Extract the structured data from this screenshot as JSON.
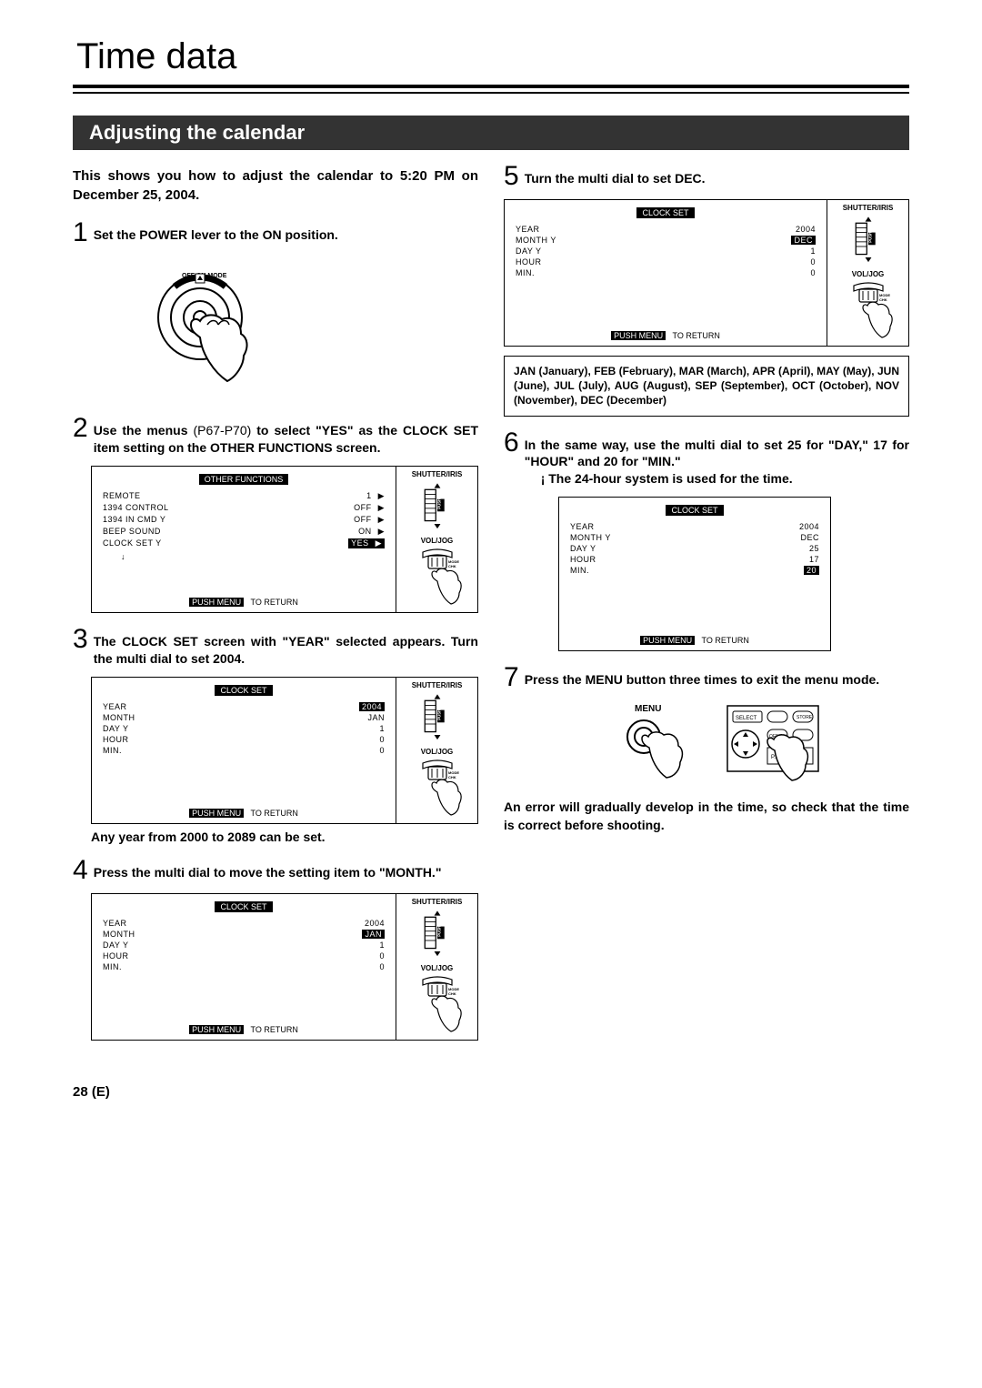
{
  "page_title": "Time data",
  "section_header": "Adjusting the calendar",
  "intro": "This shows you how to adjust the calendar to 5:20 PM on December 25, 2004.",
  "steps": {
    "s1": {
      "num": "1",
      "text": "Set the POWER lever to the ON position."
    },
    "s2": {
      "num": "2",
      "text_a": "Use the menus ",
      "text_b": "(P67-P70)",
      "text_c": " to select \"YES\" as the CLOCK SET item setting on the OTHER FUNCTIONS screen."
    },
    "s3": {
      "num": "3",
      "text": "The CLOCK SET screen with \"YEAR\" selected appears. Turn the multi dial to set 2004."
    },
    "s3_note": "Any year from 2000 to 2089 can be set.",
    "s4": {
      "num": "4",
      "text": "Press the multi dial to move the setting item to \"MONTH.\""
    },
    "s5": {
      "num": "5",
      "text": "Turn the multi dial to set DEC."
    },
    "s6": {
      "num": "6",
      "text": "In the same way, use the multi dial to set 25 for \"DAY,\" 17 for \"HOUR\" and 20 for \"MIN.\""
    },
    "s6_note": "The 24-hour system is used for the time.",
    "s7": {
      "num": "7",
      "text": "Press the MENU button three times to exit the menu mode."
    }
  },
  "abbrev": "JAN (January), FEB (February), MAR (March), APR (April), MAY (May), JUN (June), JUL (July), AUG (August), SEP (September), OCT (October), NOV (November), DEC (December)",
  "final_note": "An error will gradually develop in the time, so check that the time is correct before shooting.",
  "page_footer": "28 (E)",
  "dial_labels": {
    "top": "SHUTTER/IRIS",
    "push": "PUSH",
    "bottom": "VOL/JOG"
  },
  "menu_label": "MENU",
  "screens": {
    "other_functions": {
      "title": "OTHER FUNCTIONS",
      "rows": [
        {
          "l": "REMOTE",
          "v": "1",
          "arrow": true
        },
        {
          "l": "1394 CONTROL",
          "v": "OFF",
          "arrow": true
        },
        {
          "l": "1394 IN CMD",
          "v": "OFF",
          "arrow": true,
          "y": "Y"
        },
        {
          "l": "BEEP SOUND",
          "v": "ON",
          "arrow": true
        },
        {
          "l": "CLOCK SET",
          "v": "YES",
          "arrow": true,
          "sel": true,
          "y": "Y"
        },
        {
          "l": "",
          "v": "",
          "arrow": false
        }
      ],
      "footer": [
        "PUSH MENU",
        "TO RETURN"
      ]
    },
    "clock_year": {
      "title": "CLOCK SET",
      "rows": [
        {
          "l": "YEAR",
          "v": "2004",
          "sel": true
        },
        {
          "l": "MONTH",
          "v": "JAN"
        },
        {
          "l": "DAY",
          "v": "1",
          "y": "Y"
        },
        {
          "l": "HOUR",
          "v": "0"
        },
        {
          "l": "MIN.",
          "v": "0"
        }
      ],
      "footer": [
        "PUSH MENU",
        "TO RETURN"
      ]
    },
    "clock_month": {
      "title": "CLOCK SET",
      "rows": [
        {
          "l": "YEAR",
          "v": "2004"
        },
        {
          "l": "MONTH",
          "v": "JAN",
          "sel": true
        },
        {
          "l": "DAY",
          "v": "1",
          "y": "Y"
        },
        {
          "l": "HOUR",
          "v": "0"
        },
        {
          "l": "MIN.",
          "v": "0"
        }
      ],
      "footer": [
        "PUSH MENU",
        "TO RETURN"
      ]
    },
    "clock_dec": {
      "title": "CLOCK SET",
      "rows": [
        {
          "l": "YEAR",
          "v": "2004"
        },
        {
          "l": "MONTH",
          "v": "DEC",
          "sel": true,
          "y": "Y"
        },
        {
          "l": "DAY",
          "v": "1",
          "y2": "Y"
        },
        {
          "l": "HOUR",
          "v": "0"
        },
        {
          "l": "MIN.",
          "v": "0"
        }
      ],
      "footer": [
        "PUSH MENU",
        "TO RETURN"
      ]
    },
    "clock_min": {
      "title": "CLOCK SET",
      "rows": [
        {
          "l": "YEAR",
          "v": "2004"
        },
        {
          "l": "MONTH",
          "v": "DEC",
          "y": "Y"
        },
        {
          "l": "DAY",
          "v": "25",
          "y2": "Y"
        },
        {
          "l": "HOUR",
          "v": "17"
        },
        {
          "l": "MIN.",
          "v": "20",
          "sel": true
        }
      ],
      "footer": [
        "PUSH MENU",
        "TO RETURN"
      ]
    }
  }
}
